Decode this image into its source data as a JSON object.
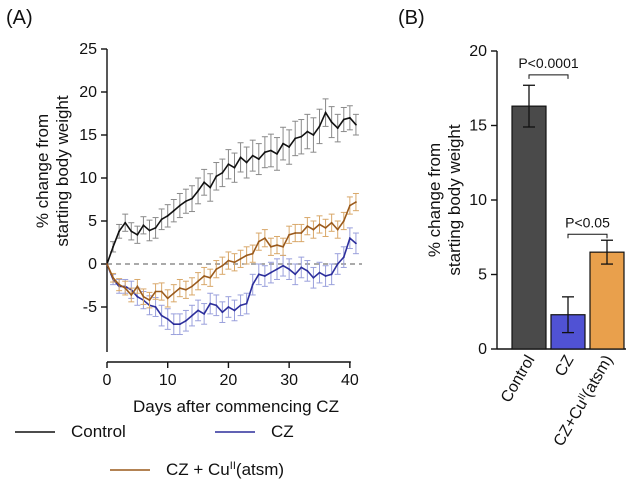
{
  "panels": {
    "a": "(A)",
    "b": "(B)"
  },
  "chart_data": [
    {
      "type": "line",
      "xlabel": "Days after commencing CZ",
      "ylabel_line1": "% change from",
      "ylabel_line2": "starting body weight",
      "xlim": [
        0,
        42
      ],
      "ylim": [
        -10,
        25
      ],
      "xticks": [
        0,
        10,
        20,
        30,
        40
      ],
      "yticks": [
        -5,
        0,
        5,
        10,
        15,
        20,
        25
      ],
      "reference_line": 0,
      "x": [
        0,
        1,
        2,
        3,
        4,
        5,
        6,
        7,
        8,
        9,
        10,
        11,
        12,
        13,
        14,
        15,
        16,
        17,
        18,
        19,
        20,
        21,
        22,
        23,
        24,
        25,
        26,
        27,
        28,
        29,
        30,
        31,
        32,
        33,
        34,
        35,
        36,
        37,
        38,
        39,
        40,
        41
      ],
      "series": [
        {
          "name": "Control",
          "color": "#111111",
          "error_color": "#8a8a8a",
          "values": [
            0,
            2,
            3.8,
            4.8,
            3.8,
            3.4,
            4.5,
            3.9,
            4.2,
            5.2,
            5.6,
            6.2,
            6.8,
            7.3,
            7.6,
            8.5,
            9.5,
            8.9,
            10.2,
            10.6,
            11.6,
            11.2,
            12.4,
            11.8,
            12.6,
            12.2,
            13.0,
            13.2,
            12.8,
            14.0,
            13.6,
            14.6,
            14.8,
            15.4,
            15.0,
            16.0,
            17.6,
            16.5,
            15.8,
            16.8,
            17.0,
            16.2
          ],
          "errors": [
            0,
            0.6,
            0.8,
            1.0,
            1.0,
            1.0,
            1.0,
            1.2,
            1.2,
            1.2,
            1.3,
            1.3,
            1.4,
            1.4,
            1.5,
            1.5,
            1.5,
            1.6,
            1.6,
            1.6,
            1.7,
            1.7,
            1.7,
            1.8,
            1.8,
            1.8,
            1.8,
            1.9,
            1.9,
            1.9,
            2.0,
            2.0,
            2.0,
            2.0,
            2.0,
            2.0,
            1.6,
            1.8,
            1.6,
            1.4,
            1.4,
            1.2
          ]
        },
        {
          "name": "CZ",
          "color": "#2d2f9c",
          "error_color": "#9aa0dc",
          "values": [
            0,
            -1.8,
            -2.6,
            -2.6,
            -3.0,
            -3.8,
            -4.2,
            -4.8,
            -5.0,
            -6.0,
            -6.4,
            -7.0,
            -7.0,
            -6.6,
            -6.0,
            -5.4,
            -5.8,
            -4.6,
            -4.8,
            -5.6,
            -5.0,
            -5.4,
            -4.8,
            -4.6,
            -2.4,
            -1.2,
            -1.4,
            -1.0,
            -0.6,
            -0.2,
            -0.6,
            -1.2,
            -0.4,
            -0.8,
            -1.6,
            -1.0,
            -1.4,
            -1.2,
            0.0,
            0.8,
            3.0,
            2.4
          ],
          "errors": [
            0,
            0.6,
            0.8,
            0.8,
            1.0,
            1.0,
            1.0,
            1.1,
            1.1,
            1.2,
            1.2,
            1.2,
            1.2,
            1.2,
            1.2,
            1.2,
            1.2,
            1.2,
            1.2,
            1.2,
            1.2,
            1.2,
            1.2,
            1.2,
            1.2,
            1.2,
            1.2,
            1.2,
            1.2,
            1.2,
            1.2,
            1.2,
            1.2,
            1.2,
            1.2,
            1.2,
            1.2,
            1.2,
            1.2,
            1.2,
            1.2,
            1.2
          ]
        },
        {
          "name": "CZ + Cuᴵᴵ(atsm)",
          "color": "#9a5a1c",
          "error_color": "#d9a86a",
          "values": [
            0,
            -1.6,
            -2.4,
            -2.8,
            -3.6,
            -2.6,
            -3.8,
            -4.2,
            -3.2,
            -3.2,
            -4.0,
            -3.4,
            -2.8,
            -3.0,
            -2.6,
            -2.0,
            -1.4,
            -1.6,
            -0.6,
            -0.2,
            0.4,
            0.2,
            0.6,
            1.0,
            1.2,
            2.6,
            3.0,
            2.0,
            2.2,
            2.0,
            3.4,
            3.6,
            3.6,
            4.4,
            4.0,
            4.6,
            4.2,
            4.8,
            4.0,
            5.0,
            6.8,
            7.2
          ],
          "errors": [
            0,
            0.5,
            0.7,
            0.8,
            0.8,
            0.8,
            0.9,
            0.9,
            0.9,
            1.0,
            1.0,
            1.0,
            1.0,
            1.0,
            1.0,
            1.0,
            1.0,
            1.0,
            1.0,
            1.0,
            1.0,
            1.0,
            1.0,
            1.0,
            1.0,
            1.0,
            1.0,
            1.0,
            1.0,
            1.0,
            1.0,
            1.0,
            1.0,
            1.0,
            1.0,
            1.0,
            1.0,
            1.0,
            1.0,
            1.0,
            1.0,
            1.0
          ]
        }
      ],
      "legend": [
        {
          "label": "Control",
          "color": "#111111"
        },
        {
          "label": "CZ",
          "color": "#2d2f9c"
        },
        {
          "label_main": "CZ + Cu",
          "label_sup": "II",
          "label_tail": "(atsm)",
          "color": "#9a5a1c"
        }
      ]
    },
    {
      "type": "bar",
      "ylabel_line1": "% change from",
      "ylabel_line2": "starting body weight",
      "ylim": [
        0,
        20
      ],
      "yticks": [
        0,
        5,
        10,
        15,
        20
      ],
      "categories": [
        {
          "label": "Control",
          "sup": "",
          "tail": ""
        },
        {
          "label": "CZ",
          "sup": "",
          "tail": ""
        },
        {
          "label": "CZ+Cu",
          "sup": "II",
          "tail": "(atsm)"
        }
      ],
      "values": [
        16.3,
        2.3,
        6.5
      ],
      "errors": [
        1.4,
        1.2,
        0.8
      ],
      "colors": [
        "#4a4a4a",
        "#5052d4",
        "#e9a04c"
      ],
      "significance": [
        {
          "text": "P<0.0001",
          "from": 0,
          "to": 1,
          "y": 18.4
        },
        {
          "text": "P<0.05",
          "from": 1,
          "to": 2,
          "y": 7.7
        }
      ]
    }
  ]
}
